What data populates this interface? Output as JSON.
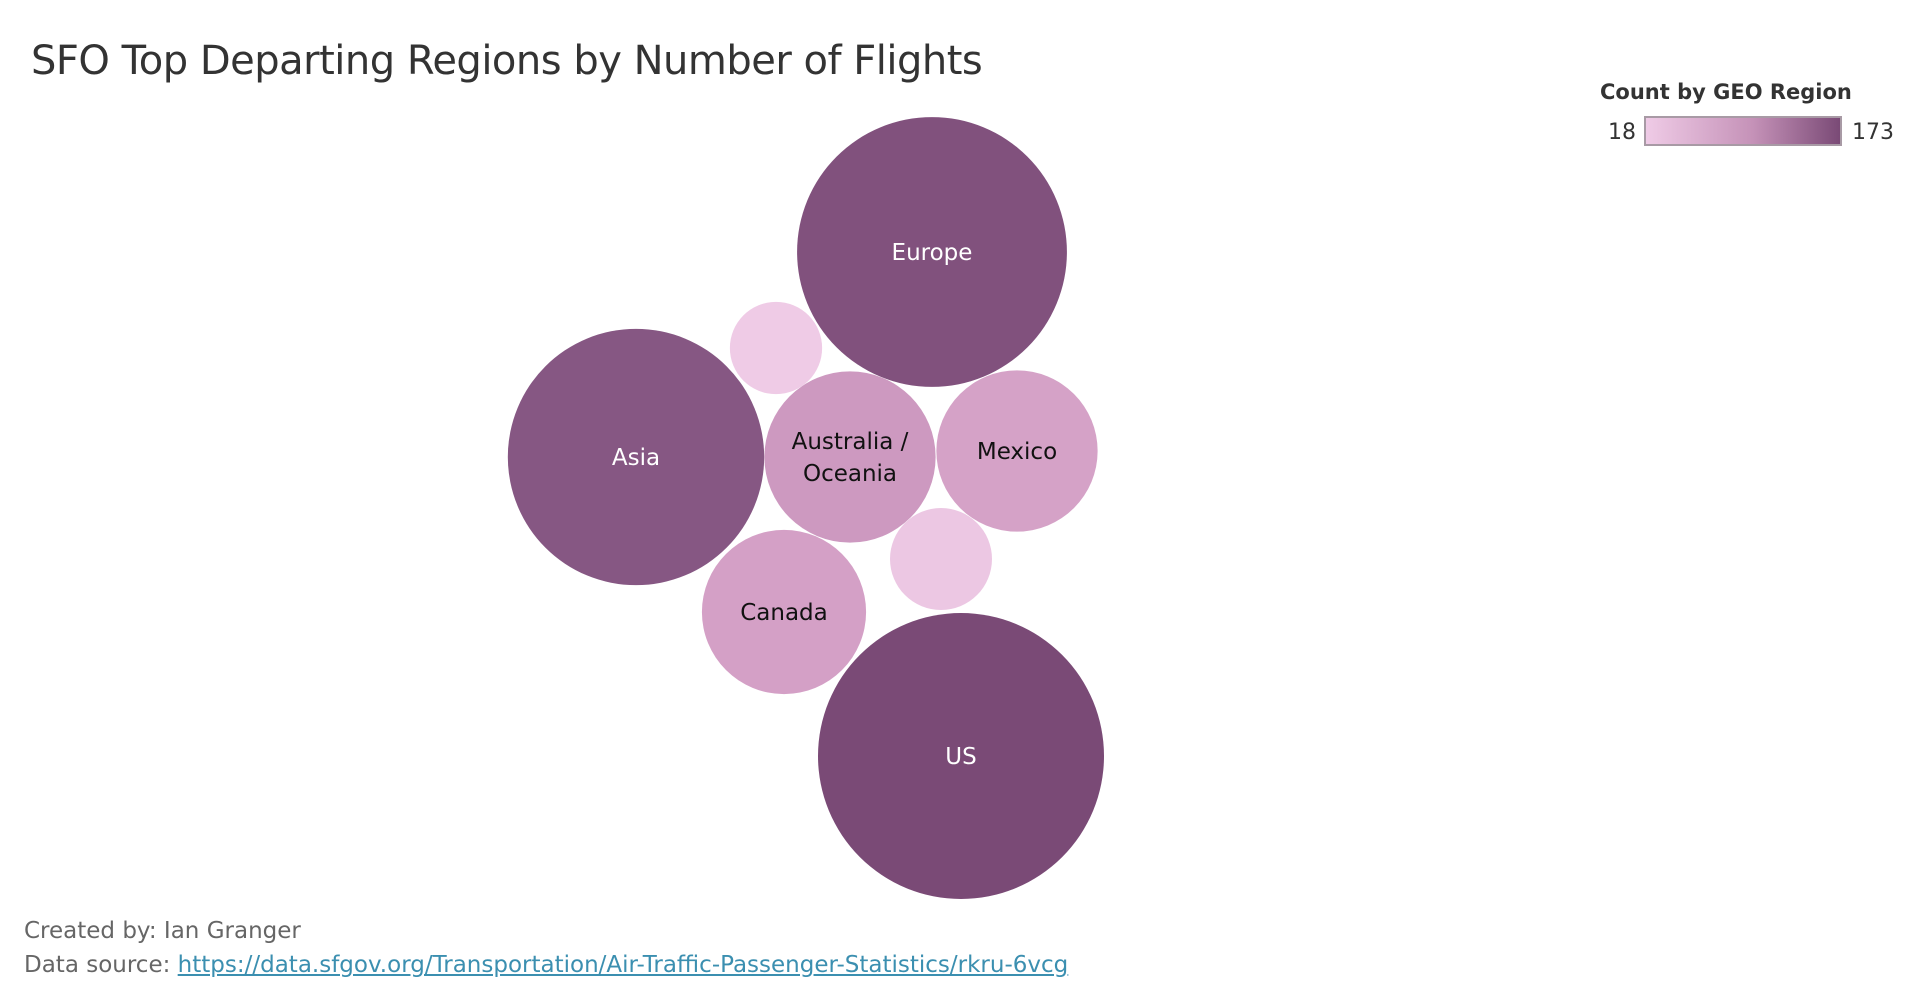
{
  "title": "SFO Top Departing Regions by Number of Flights",
  "legend": {
    "title": "Count by GEO Region",
    "min_label": "18",
    "max_label": "173",
    "color_low": "#efcbe6",
    "color_high": "#7a4a76"
  },
  "footer": {
    "created_by": "Created by: Ian Granger",
    "source_prefix": "Data source: ",
    "source_link": "https://data.sfgov.org/Transportation/Air-Traffic-Passenger-Statistics/rkru-6vcg"
  },
  "chart_data": {
    "type": "packed-bubble",
    "color_measure": "Count by GEO Region",
    "color_range": [
      18,
      173
    ],
    "items": [
      {
        "label": "Europe",
        "value": 154
      },
      {
        "label": "US",
        "value": 173
      },
      {
        "label": "Asia",
        "value": 139
      },
      {
        "label": "Australia / Oceania",
        "value": 62
      },
      {
        "label": "Mexico",
        "value": 55
      },
      {
        "label": "Canada",
        "value": 57
      },
      {
        "label": "",
        "value": 18
      },
      {
        "label": "",
        "value": 22
      }
    ]
  }
}
